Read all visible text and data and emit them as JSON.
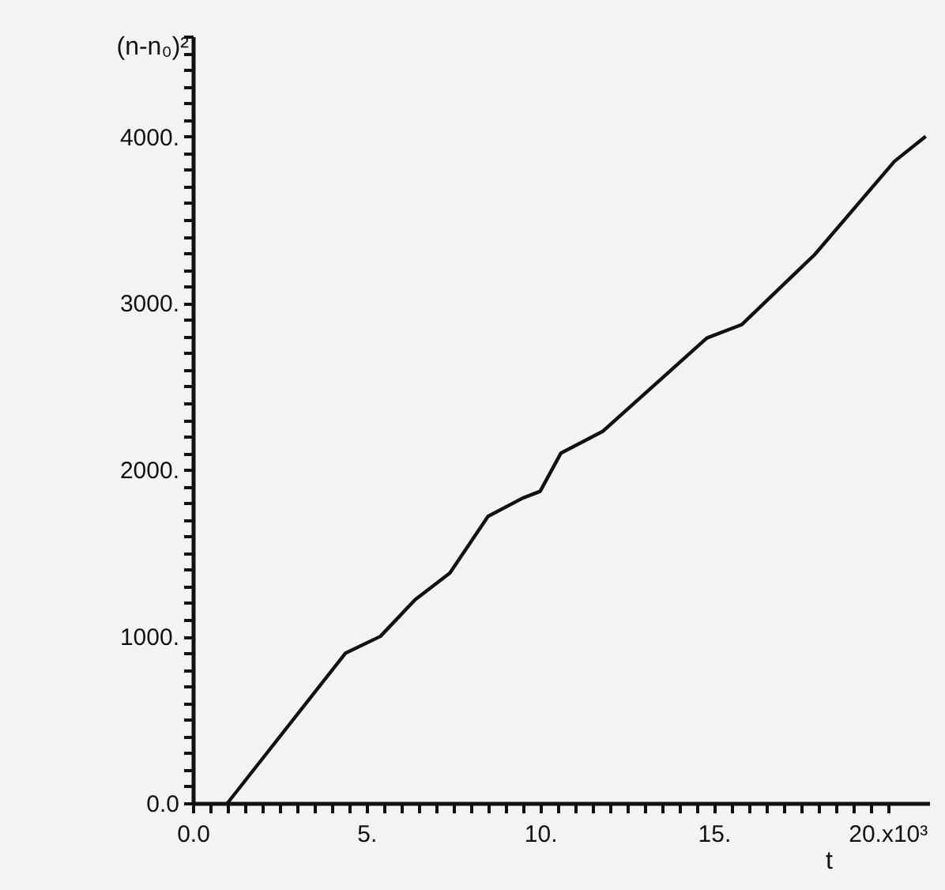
{
  "chart_data": {
    "type": "line",
    "xlabel": "t",
    "ylabel": "(n-n₀)²",
    "x": [
      1.0,
      4.4,
      5.4,
      6.4,
      7.4,
      8.5,
      9.5,
      10.0,
      10.6,
      11.8,
      14.8,
      15.8,
      17.9,
      20.2,
      21.1
    ],
    "series": [
      {
        "color": "#111111",
        "values": [
          0,
          900,
          1000,
          1220,
          1380,
          1720,
          1830,
          1870,
          2100,
          2230,
          2790,
          2870,
          3290,
          3850,
          4000
        ]
      }
    ],
    "xlim": [
      0,
      21.2
    ],
    "xticks": [
      {
        "value": 0,
        "label": "0.0"
      },
      {
        "value": 0.5,
        "label": null
      },
      {
        "value": 1,
        "label": null
      },
      {
        "value": 1.5,
        "label": null
      },
      {
        "value": 2,
        "label": null
      },
      {
        "value": 2.5,
        "label": null
      },
      {
        "value": 3,
        "label": null
      },
      {
        "value": 3.5,
        "label": null
      },
      {
        "value": 4,
        "label": null
      },
      {
        "value": 4.5,
        "label": null
      },
      {
        "value": 5,
        "label": "5."
      },
      {
        "value": 5.5,
        "label": null
      },
      {
        "value": 6,
        "label": null
      },
      {
        "value": 6.5,
        "label": null
      },
      {
        "value": 7,
        "label": null
      },
      {
        "value": 7.5,
        "label": null
      },
      {
        "value": 8,
        "label": null
      },
      {
        "value": 8.5,
        "label": null
      },
      {
        "value": 9,
        "label": null
      },
      {
        "value": 9.5,
        "label": null
      },
      {
        "value": 10,
        "label": "10."
      },
      {
        "value": 10.5,
        "label": null
      },
      {
        "value": 11,
        "label": null
      },
      {
        "value": 11.5,
        "label": null
      },
      {
        "value": 12,
        "label": null
      },
      {
        "value": 12.5,
        "label": null
      },
      {
        "value": 13,
        "label": null
      },
      {
        "value": 13.5,
        "label": null
      },
      {
        "value": 14,
        "label": null
      },
      {
        "value": 14.5,
        "label": null
      },
      {
        "value": 15,
        "label": "15."
      },
      {
        "value": 15.5,
        "label": null
      },
      {
        "value": 16,
        "label": null
      },
      {
        "value": 16.5,
        "label": null
      },
      {
        "value": 17,
        "label": null
      },
      {
        "value": 17.5,
        "label": null
      },
      {
        "value": 18,
        "label": null
      },
      {
        "value": 18.5,
        "label": null
      },
      {
        "value": 19,
        "label": null
      },
      {
        "value": 19.5,
        "label": null
      },
      {
        "value": 20,
        "label": "20.x10³"
      }
    ],
    "ylim": [
      0,
      4600
    ],
    "yticks": [
      {
        "value": 0,
        "label": "0.0"
      },
      {
        "value": 100,
        "label": null
      },
      {
        "value": 200,
        "label": null
      },
      {
        "value": 300,
        "label": null
      },
      {
        "value": 400,
        "label": null
      },
      {
        "value": 500,
        "label": null
      },
      {
        "value": 600,
        "label": null
      },
      {
        "value": 700,
        "label": null
      },
      {
        "value": 800,
        "label": null
      },
      {
        "value": 900,
        "label": null
      },
      {
        "value": 1000,
        "label": "1000."
      },
      {
        "value": 1100,
        "label": null
      },
      {
        "value": 1200,
        "label": null
      },
      {
        "value": 1300,
        "label": null
      },
      {
        "value": 1400,
        "label": null
      },
      {
        "value": 1500,
        "label": null
      },
      {
        "value": 1600,
        "label": null
      },
      {
        "value": 1700,
        "label": null
      },
      {
        "value": 1800,
        "label": null
      },
      {
        "value": 1900,
        "label": null
      },
      {
        "value": 2000,
        "label": "2000."
      },
      {
        "value": 2100,
        "label": null
      },
      {
        "value": 2200,
        "label": null
      },
      {
        "value": 2300,
        "label": null
      },
      {
        "value": 2400,
        "label": null
      },
      {
        "value": 2500,
        "label": null
      },
      {
        "value": 2600,
        "label": null
      },
      {
        "value": 2700,
        "label": null
      },
      {
        "value": 2800,
        "label": null
      },
      {
        "value": 2900,
        "label": null
      },
      {
        "value": 3000,
        "label": "3000."
      },
      {
        "value": 3100,
        "label": null
      },
      {
        "value": 3200,
        "label": null
      },
      {
        "value": 3300,
        "label": null
      },
      {
        "value": 3400,
        "label": null
      },
      {
        "value": 3500,
        "label": null
      },
      {
        "value": 3600,
        "label": null
      },
      {
        "value": 3700,
        "label": null
      },
      {
        "value": 3800,
        "label": null
      },
      {
        "value": 3900,
        "label": null
      },
      {
        "value": 4000,
        "label": "4000."
      },
      {
        "value": 4100,
        "label": null
      },
      {
        "value": 4200,
        "label": null
      },
      {
        "value": 4300,
        "label": null
      },
      {
        "value": 4400,
        "label": null
      },
      {
        "value": 4500,
        "label": null
      },
      {
        "value": 4600,
        "label": null
      }
    ],
    "grid": false,
    "legend": false,
    "marker": "none",
    "line_style": "solid"
  }
}
